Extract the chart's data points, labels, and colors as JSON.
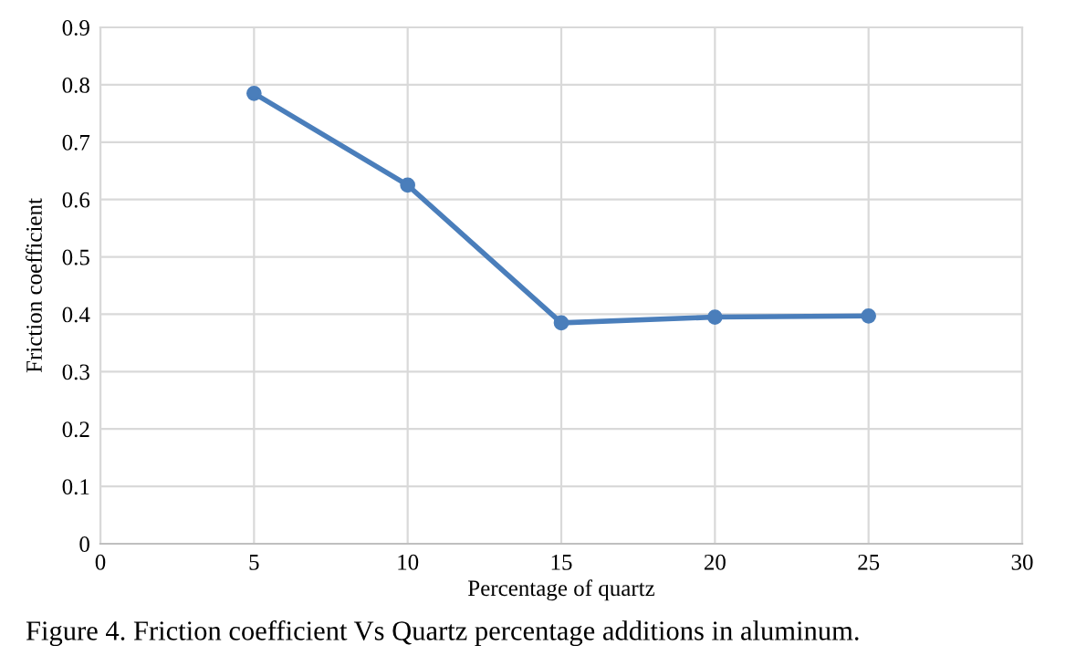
{
  "chart_data": {
    "type": "line",
    "xlabel": "Percentage of quartz",
    "ylabel": "Friction coefficient",
    "x": [
      5,
      10,
      15,
      20,
      25
    ],
    "series": [
      {
        "color": "#4a7ebb",
        "values": [
          0.785,
          0.625,
          0.385,
          0.395,
          0.397
        ]
      }
    ],
    "xlim": [
      0,
      30
    ],
    "xticks": [
      0,
      5,
      10,
      15,
      20,
      25,
      30
    ],
    "ylim": [
      0,
      0.9
    ],
    "yticks": [
      0,
      0.1,
      0.2,
      0.3,
      0.4,
      0.5,
      0.6,
      0.7,
      0.8,
      0.9
    ],
    "grid": true,
    "marker": "circle",
    "line_style": "solid",
    "annotations": [
      "Figure 4. Friction coefficient Vs Quartz percentage additions in aluminum."
    ]
  }
}
